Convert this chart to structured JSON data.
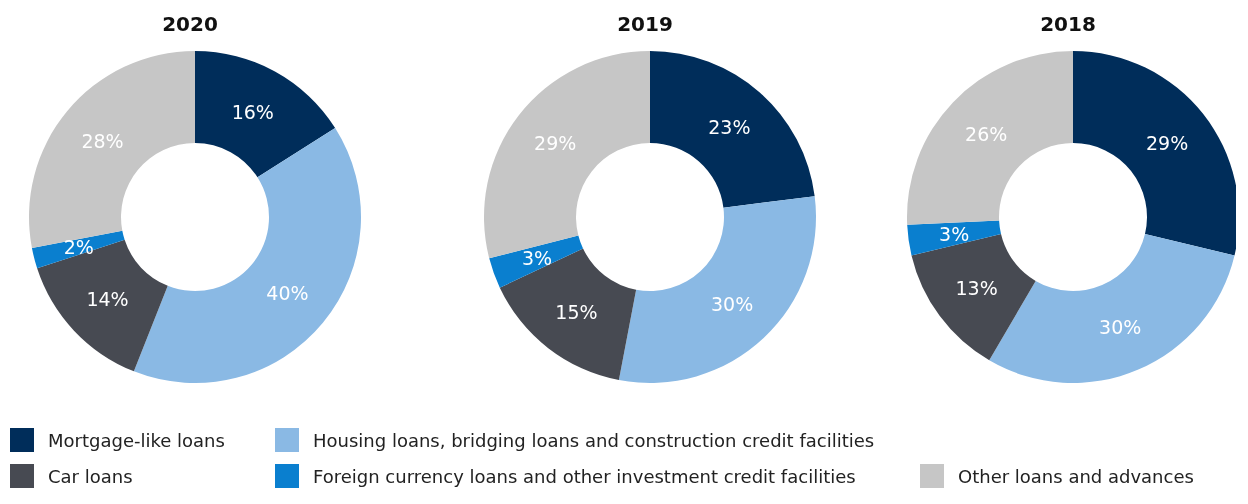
{
  "chart_data": {
    "type": "donut",
    "categories": [
      "Mortgage-like loans",
      "Housing loans, bridging loans and construction credit facilities",
      "Car loans",
      "Foreign currency loans and other investment credit facilities",
      "Other loans and advances"
    ],
    "colors": [
      "#002d5a",
      "#8ab9e4",
      "#474a52",
      "#0a7fcf",
      "#c6c6c6"
    ],
    "legend": "bottom",
    "series": [
      {
        "name": "2020",
        "values": [
          16,
          40,
          14,
          2,
          28
        ],
        "value_labels": [
          "16%",
          "40%",
          "14%",
          "2%",
          "28%"
        ]
      },
      {
        "name": "2019",
        "values": [
          23,
          30,
          15,
          3,
          29
        ],
        "value_labels": [
          "23%",
          "30%",
          "15%",
          "3%",
          "29%"
        ]
      },
      {
        "name": "2018",
        "values": [
          29,
          30,
          13,
          3,
          26
        ],
        "value_labels": [
          "29%",
          "30%",
          "13%",
          "3%",
          "26%"
        ]
      }
    ]
  }
}
